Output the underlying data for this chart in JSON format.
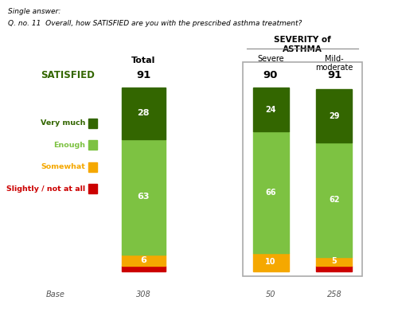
{
  "title_line1": "Single answer:",
  "title_line2": "Q. no. 11  Overall, how SATISFIED are you with the prescribed asthma treatment?",
  "severity_header": "SEVERITY of\nASTHMA",
  "col_headers": [
    "Total",
    "Severe",
    "Mild-\nmoderate"
  ],
  "satisfied_label": "SATISFIED",
  "satisfied_values": [
    "91",
    "90",
    "91"
  ],
  "base_label": "Base",
  "base_values": [
    "308",
    "50",
    "258"
  ],
  "categories": [
    "Slightly / not at all",
    "Somewhat",
    "Enough",
    "Very much"
  ],
  "bar_colors": [
    "#cc0000",
    "#f5a800",
    "#7dc242",
    "#336600"
  ],
  "legend_labels": [
    "Very much",
    "Enough",
    "Somewhat",
    "Slightly / not at all"
  ],
  "legend_colors": [
    "#336600",
    "#7dc242",
    "#f5a800",
    "#cc0000"
  ],
  "legend_text_colors": [
    "#336600",
    "#7dc242",
    "#f5a800",
    "#cc0000"
  ],
  "data": {
    "Total": [
      3,
      6,
      63,
      28
    ],
    "Severe": [
      0,
      10,
      66,
      24
    ],
    "Mild-moderate": [
      3,
      5,
      62,
      29
    ]
  },
  "bg_color": "#ffffff",
  "bar_positions": [
    0.33,
    0.66,
    0.83
  ],
  "bar_width": 0.1
}
